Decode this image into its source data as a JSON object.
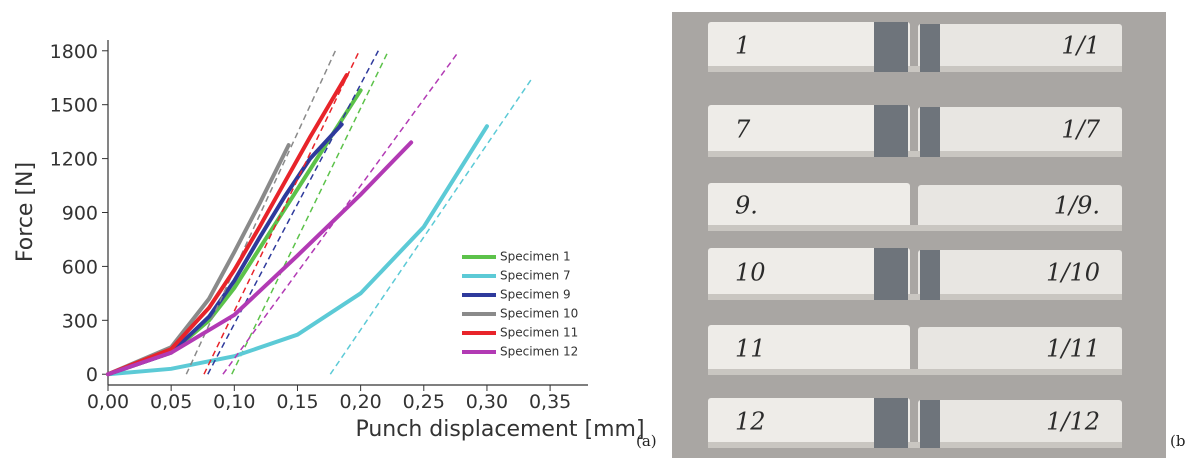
{
  "chart_data": {
    "type": "line",
    "xlabel": "Punch displacement [mm]",
    "ylabel": "Force [N]",
    "xlim": [
      0,
      0.38
    ],
    "ylim": [
      -60,
      1860
    ],
    "xticks": [
      {
        "value": 0,
        "label": "0,00"
      },
      {
        "value": 0.05,
        "label": "0,05"
      },
      {
        "value": 0.1,
        "label": "0,10"
      },
      {
        "value": 0.15,
        "label": "0,15"
      },
      {
        "value": 0.2,
        "label": "0,20"
      },
      {
        "value": 0.25,
        "label": "0,25"
      },
      {
        "value": 0.3,
        "label": "0,30"
      },
      {
        "value": 0.35,
        "label": "0,35"
      }
    ],
    "yticks": [
      0,
      300,
      600,
      900,
      1200,
      1500,
      1800
    ],
    "legend": "lower right",
    "series": [
      {
        "name": "Specimen 1",
        "color": "#5cc24a",
        "x": [
          0,
          0.05,
          0.08,
          0.1,
          0.12,
          0.14,
          0.16,
          0.18,
          0.2
        ],
        "values": [
          0,
          120,
          300,
          480,
          700,
          920,
          1140,
          1360,
          1580
        ],
        "fit_x": [
          0.098,
          0.222
        ],
        "fit_values": [
          0,
          1800
        ]
      },
      {
        "name": "Specimen 7",
        "color": "#5ccad6",
        "x": [
          0,
          0.05,
          0.1,
          0.15,
          0.2,
          0.25,
          0.3
        ],
        "values": [
          0,
          30,
          100,
          220,
          450,
          820,
          1380
        ],
        "fit_x": [
          0.176,
          0.336
        ],
        "fit_values": [
          0,
          1650
        ]
      },
      {
        "name": "Specimen 9",
        "color": "#2e3a9c",
        "x": [
          0,
          0.05,
          0.08,
          0.1,
          0.12,
          0.14,
          0.16,
          0.185
        ],
        "values": [
          0,
          120,
          320,
          520,
          760,
          990,
          1200,
          1390
        ],
        "fit_x": [
          0.079,
          0.214
        ],
        "fit_values": [
          0,
          1800
        ]
      },
      {
        "name": "Specimen 10",
        "color": "#8a8a8a",
        "x": [
          0,
          0.05,
          0.08,
          0.1,
          0.12,
          0.143
        ],
        "values": [
          0,
          150,
          420,
          680,
          950,
          1275
        ],
        "fit_x": [
          0.062,
          0.18
        ],
        "fit_values": [
          0,
          1800
        ]
      },
      {
        "name": "Specimen 11",
        "color": "#e8242a",
        "x": [
          0,
          0.05,
          0.08,
          0.1,
          0.12,
          0.14,
          0.16,
          0.189
        ],
        "values": [
          0,
          140,
          370,
          580,
          820,
          1070,
          1320,
          1665
        ],
        "fit_x": [
          0.076,
          0.199
        ],
        "fit_values": [
          0,
          1800
        ]
      },
      {
        "name": "Specimen 12",
        "color": "#b23ab4",
        "x": [
          0,
          0.05,
          0.1,
          0.15,
          0.2,
          0.24
        ],
        "values": [
          0,
          120,
          330,
          660,
          1000,
          1290
        ],
        "fit_x": [
          0.091,
          0.277
        ],
        "fit_values": [
          0,
          1790
        ]
      }
    ]
  },
  "panel_labels": [
    "(a)",
    "(b"
  ],
  "photo": {
    "specimens": [
      {
        "left": "1",
        "right": "1/1"
      },
      {
        "left": "7",
        "right": "1/7"
      },
      {
        "left": "9.",
        "right": "1/9."
      },
      {
        "left": "10",
        "right": "1/10"
      },
      {
        "left": "11",
        "right": "1/11"
      },
      {
        "left": "12",
        "right": "1/12"
      }
    ]
  }
}
